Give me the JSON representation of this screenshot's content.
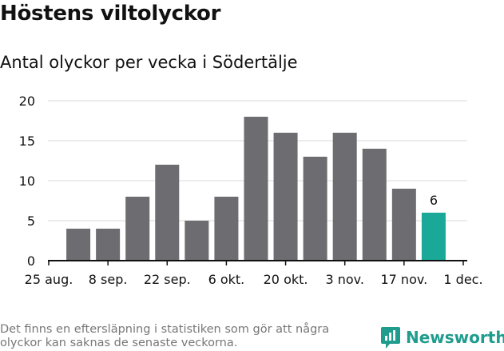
{
  "title": "Höstens viltolyckor",
  "subtitle": "Antal olyckor per vecka i Södertälje",
  "footnote": "Det finns en eftersläpning i statistiken som gör att några olyckor kan saknas de senaste veckorna.",
  "brand": {
    "name": "Newsworthy",
    "icon": "newsworthy-logo-icon",
    "color": "#1f9c8d"
  },
  "colors": {
    "bar": "#6d6c70",
    "highlight": "#1aa898",
    "grid": "#d9d9d9",
    "axis": "#111111"
  },
  "chart_data": {
    "type": "bar",
    "categories": [
      "1 sep.",
      "8 sep.",
      "15 sep.",
      "22 sep.",
      "29 sep.",
      "6 okt.",
      "13 okt.",
      "20 okt.",
      "27 okt.",
      "3 nov.",
      "10 nov.",
      "17 nov.",
      "24 nov."
    ],
    "values": [
      4,
      4,
      8,
      12,
      5,
      8,
      18,
      16,
      13,
      16,
      14,
      9,
      6
    ],
    "highlight_index": 12,
    "highlight_label": "6",
    "x_tick_labels": [
      "25 aug.",
      "8 sep.",
      "22 sep.",
      "6 okt.",
      "20 okt.",
      "3 nov.",
      "17 nov.",
      "1 dec."
    ],
    "y_ticks": [
      0,
      5,
      10,
      15,
      20
    ],
    "ylim": [
      0,
      20
    ],
    "grid": true,
    "legend": "none"
  }
}
